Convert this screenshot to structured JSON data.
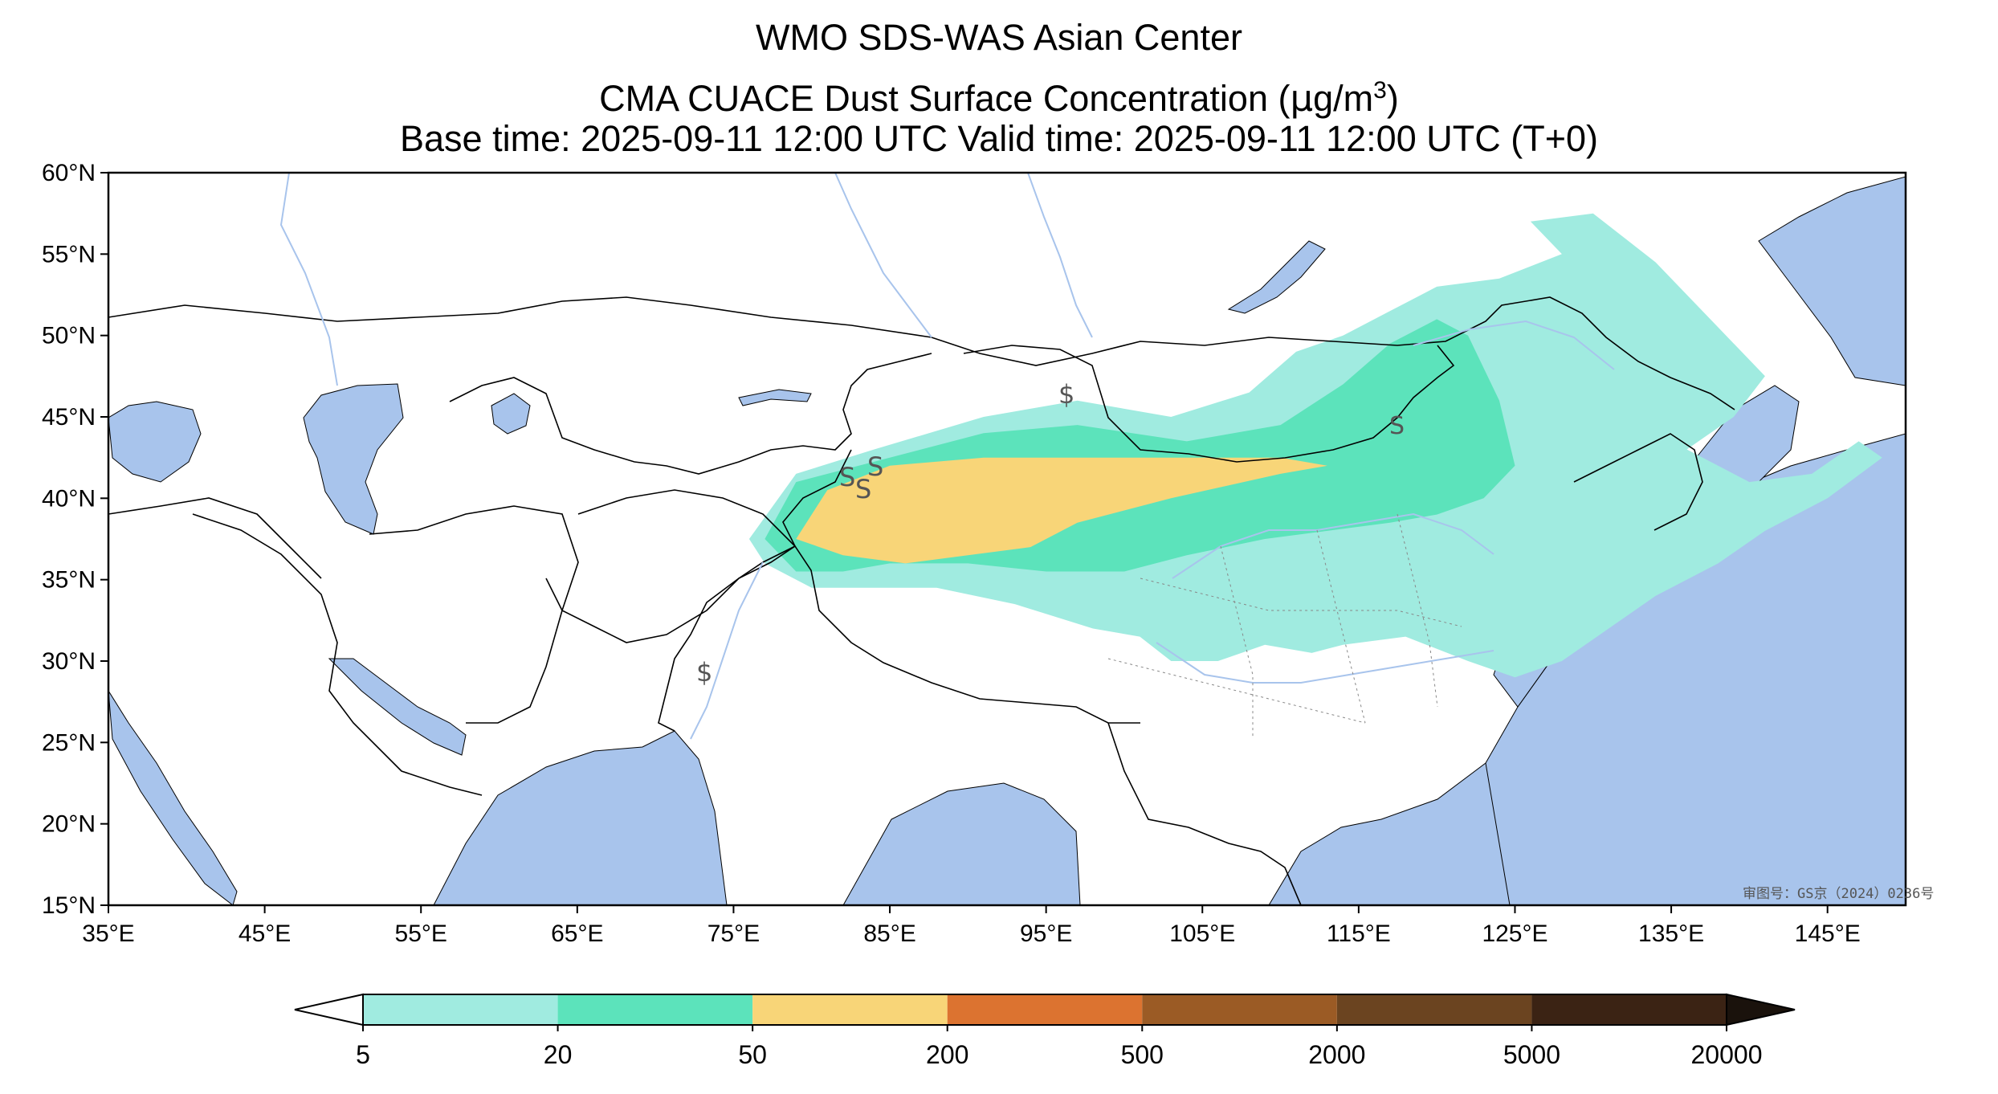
{
  "header": {
    "title_line1": "WMO SDS-WAS Asian Center",
    "title_line2_pre": "CMA CUACE Dust Surface Concentration (",
    "title_line2_mu": "μ",
    "title_line2_unit": "g/m",
    "title_line2_sup": "3",
    "title_line2_post": ")",
    "title_line3": "Base time: 2025-09-11 12:00 UTC Valid time: 2025-09-11 12:00 UTC (T+0)"
  },
  "map": {
    "lon_range": [
      35,
      150
    ],
    "lat_range": [
      15,
      60
    ],
    "lon_ticks": [
      {
        "value": 35,
        "label": "35°E"
      },
      {
        "value": 45,
        "label": "45°E"
      },
      {
        "value": 55,
        "label": "55°E"
      },
      {
        "value": 65,
        "label": "65°E"
      },
      {
        "value": 75,
        "label": "75°E"
      },
      {
        "value": 85,
        "label": "85°E"
      },
      {
        "value": 95,
        "label": "95°E"
      },
      {
        "value": 105,
        "label": "105°E"
      },
      {
        "value": 115,
        "label": "115°E"
      },
      {
        "value": 125,
        "label": "125°E"
      },
      {
        "value": 135,
        "label": "135°E"
      },
      {
        "value": 145,
        "label": "145°E"
      }
    ],
    "lat_ticks": [
      {
        "value": 60,
        "label": "60°N"
      },
      {
        "value": 55,
        "label": "55°N"
      },
      {
        "value": 50,
        "label": "50°N"
      },
      {
        "value": 45,
        "label": "45°N"
      },
      {
        "value": 40,
        "label": "40°N"
      },
      {
        "value": 35,
        "label": "35°N"
      },
      {
        "value": 30,
        "label": "30°N"
      },
      {
        "value": 25,
        "label": "25°N"
      },
      {
        "value": 20,
        "label": "20°N"
      },
      {
        "value": 15,
        "label": "15°N"
      }
    ],
    "water_color": "#a8c4ec",
    "land_color": "#ffffff",
    "dust_regions": [
      {
        "level": "5-20",
        "color": "#a0ebe0",
        "points": [
          [
            76,
            37.5
          ],
          [
            79,
            41.5
          ],
          [
            84,
            43
          ],
          [
            91,
            45
          ],
          [
            97,
            46
          ],
          [
            103,
            45
          ],
          [
            108,
            46.5
          ],
          [
            111,
            49
          ],
          [
            114,
            50
          ],
          [
            117,
            51.5
          ],
          [
            120,
            53
          ],
          [
            124,
            53.5
          ],
          [
            128,
            55
          ],
          [
            126,
            57
          ],
          [
            130,
            57.5
          ],
          [
            134,
            54.5
          ],
          [
            138,
            50.5
          ],
          [
            141,
            47.5
          ],
          [
            139,
            45
          ],
          [
            136,
            43
          ],
          [
            140,
            41
          ],
          [
            144,
            41.5
          ],
          [
            147,
            43.5
          ],
          [
            148.5,
            42.5
          ],
          [
            145,
            40
          ],
          [
            141,
            38
          ],
          [
            138,
            36
          ],
          [
            134,
            34
          ],
          [
            131,
            32
          ],
          [
            128,
            30
          ],
          [
            125,
            29
          ],
          [
            122,
            30
          ],
          [
            118,
            31.5
          ],
          [
            114,
            31
          ],
          [
            112,
            30.5
          ],
          [
            109,
            31
          ],
          [
            106,
            30
          ],
          [
            103,
            30
          ],
          [
            101,
            31.5
          ],
          [
            98,
            32
          ],
          [
            93,
            33.5
          ],
          [
            88,
            34.5
          ],
          [
            84,
            34.5
          ],
          [
            80,
            34.5
          ],
          [
            77,
            36
          ]
        ]
      },
      {
        "level": "20-50",
        "color": "#5ce3bb",
        "points": [
          [
            77,
            37.5
          ],
          [
            79,
            41
          ],
          [
            85,
            42.5
          ],
          [
            91,
            44
          ],
          [
            97,
            44.5
          ],
          [
            104,
            43.5
          ],
          [
            110,
            44.5
          ],
          [
            114,
            47
          ],
          [
            117,
            49.5
          ],
          [
            120,
            51
          ],
          [
            122,
            50
          ],
          [
            124,
            46
          ],
          [
            125,
            42
          ],
          [
            123,
            40
          ],
          [
            120,
            39
          ],
          [
            117,
            38.5
          ],
          [
            113,
            38
          ],
          [
            109,
            37.5
          ],
          [
            104,
            36.5
          ],
          [
            100,
            35.5
          ],
          [
            95,
            35.5
          ],
          [
            90,
            36
          ],
          [
            85,
            36
          ],
          [
            82,
            35.5
          ],
          [
            79,
            35.5
          ]
        ]
      },
      {
        "level": "50-200",
        "color": "#f8d578",
        "points": [
          [
            79,
            37.5
          ],
          [
            81,
            40.5
          ],
          [
            85,
            42
          ],
          [
            91,
            42.5
          ],
          [
            97,
            42.5
          ],
          [
            104,
            42.5
          ],
          [
            110,
            42.5
          ],
          [
            113,
            42
          ],
          [
            110,
            41.5
          ],
          [
            103,
            40
          ],
          [
            97,
            38.5
          ],
          [
            94,
            37
          ],
          [
            90,
            36.5
          ],
          [
            86,
            36
          ],
          [
            82,
            36.5
          ]
        ]
      }
    ],
    "stamp": "审图号：GS京（2024）0236号"
  },
  "colorbar": {
    "levels": [
      "5",
      "20",
      "50",
      "200",
      "500",
      "2000",
      "5000",
      "20000"
    ],
    "colors": [
      "#a0ebe0",
      "#5ce3bb",
      "#f8d578",
      "#dc7330",
      "#9b5b25",
      "#6b4420",
      "#3b2314"
    ],
    "under_color": "#ffffff",
    "over_color": "#1a120c"
  }
}
